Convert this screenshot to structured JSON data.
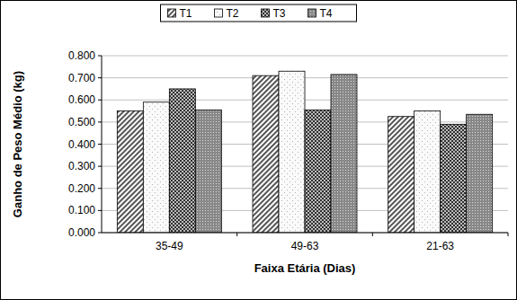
{
  "chart_data": {
    "type": "bar",
    "x_label": "Faixa Etária (Dias)",
    "y_label": "Ganho de Peso Médio (kg)",
    "categories": [
      "35-49",
      "49-63",
      "21-63"
    ],
    "series": [
      {
        "name": "T1",
        "color": "#555555",
        "values": [
          0.55,
          0.71,
          0.525
        ]
      },
      {
        "name": "T2",
        "color": "#f0f0f0",
        "values": [
          0.59,
          0.73,
          0.55
        ]
      },
      {
        "name": "T3",
        "color": "#303030",
        "values": [
          0.65,
          0.555,
          0.49
        ]
      },
      {
        "name": "T4",
        "color": "#888888",
        "values": [
          0.555,
          0.715,
          0.535
        ]
      }
    ],
    "ylim": [
      0,
      0.8
    ],
    "yticks": [
      {
        "value": 0,
        "label": "0.000"
      },
      {
        "value": 0.1,
        "label": "0.100"
      },
      {
        "value": 0.2,
        "label": "0.200"
      },
      {
        "value": 0.3,
        "label": "0.300"
      },
      {
        "value": 0.4,
        "label": "0.400"
      },
      {
        "value": 0.5,
        "label": "0.500"
      },
      {
        "value": 0.6,
        "label": "0.600"
      },
      {
        "value": 0.7,
        "label": "0.700"
      },
      {
        "value": 0.8,
        "label": "0.800"
      }
    ],
    "grid": true,
    "legend": "top"
  }
}
